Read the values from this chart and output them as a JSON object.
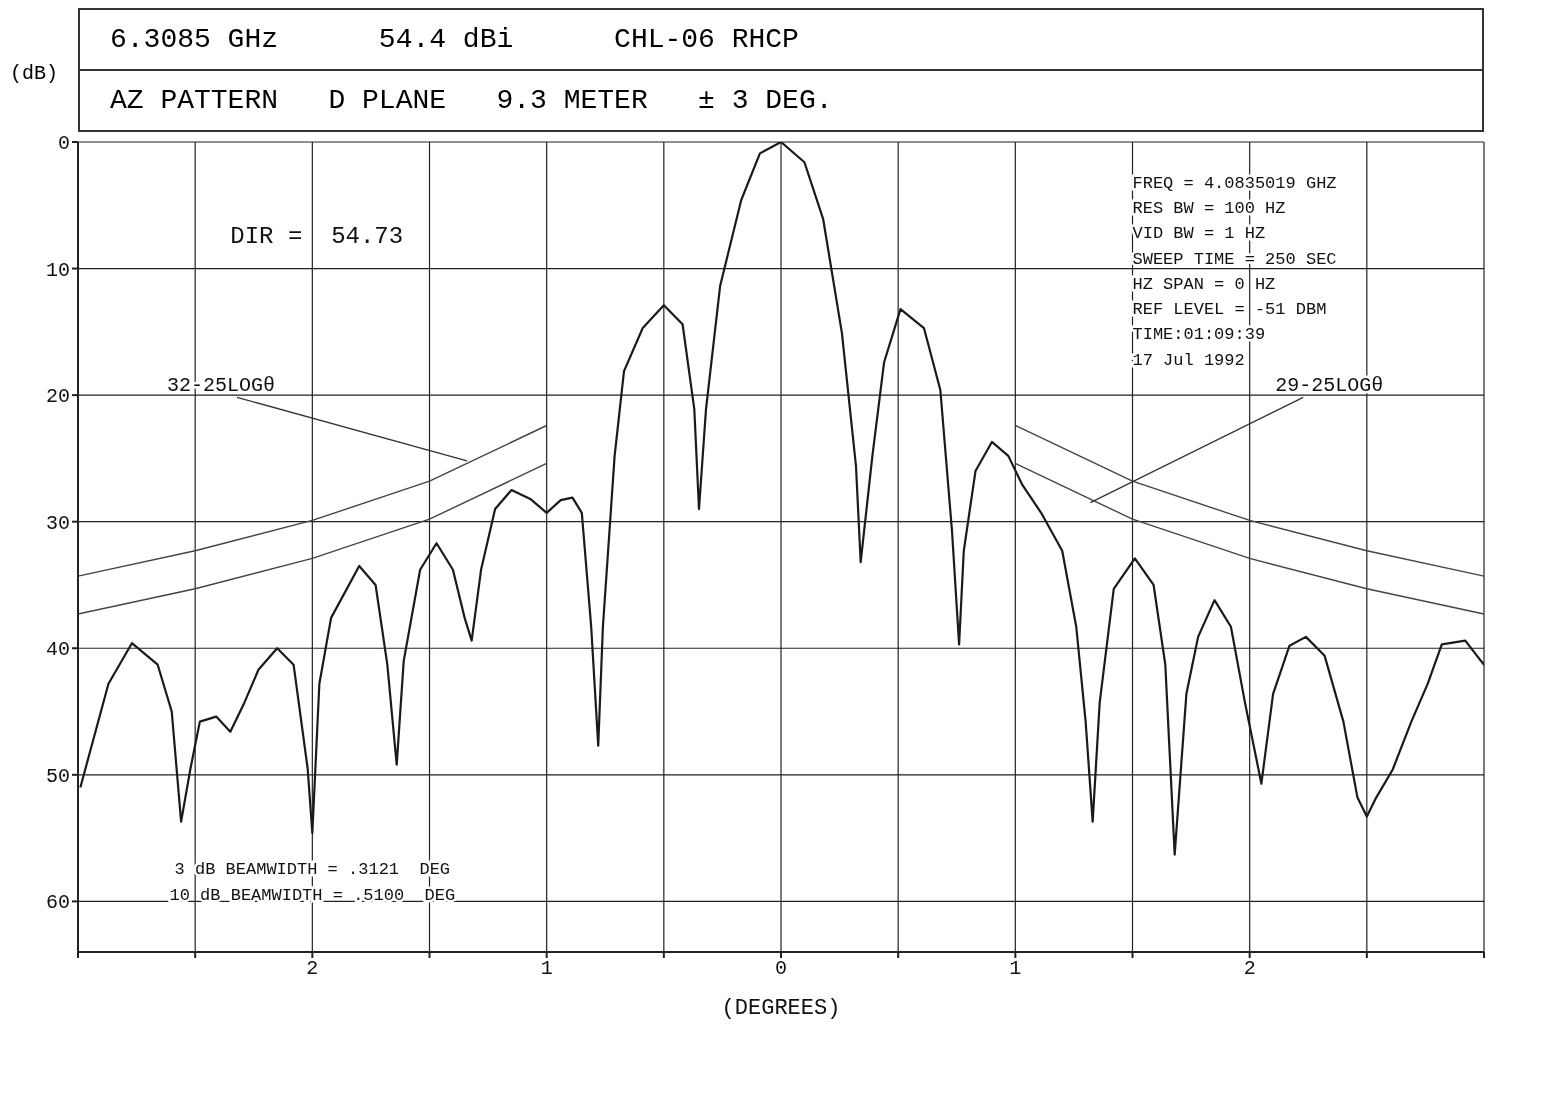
{
  "chart_data": {
    "type": "line",
    "title": "6.3085 GHz      54.4 dBi      CHL-06 RHCP",
    "subtitle": "AZ PATTERN   D PLANE   9.3 METER   ± 3 DEG.",
    "xlabel": "(DEGREES)",
    "ylabel": "(dB)",
    "xlim": [
      -3,
      3
    ],
    "xticks": [
      {
        "value": -3,
        "label": null
      },
      {
        "value": -2.5,
        "label": null
      },
      {
        "value": -2,
        "label": "2"
      },
      {
        "value": -1.5,
        "label": null
      },
      {
        "value": -1,
        "label": "1"
      },
      {
        "value": -0.5,
        "label": null
      },
      0,
      {
        "value": 0.5,
        "label": null
      },
      1,
      {
        "value": 1.5,
        "label": null
      },
      2,
      {
        "value": 2.5,
        "label": null
      },
      {
        "value": 3,
        "label": null
      }
    ],
    "ylim": [
      64,
      0
    ],
    "yticks": [
      0,
      10,
      20,
      30,
      40,
      50,
      60
    ],
    "grid": true,
    "series": [
      {
        "color": "#1a1a1a",
        "x": [
          -2.99,
          -2.87,
          -2.77,
          -2.66,
          -2.6,
          -2.56,
          -2.52,
          -2.48,
          -2.41,
          -2.35,
          -2.29,
          -2.23,
          -2.15,
          -2.08,
          -2.02,
          -2.0,
          -1.97,
          -1.92,
          -1.8,
          -1.73,
          -1.68,
          -1.64,
          -1.61,
          -1.54,
          -1.47,
          -1.4,
          -1.35,
          -1.32,
          -1.28,
          -1.22,
          -1.15,
          -1.07,
          -1.0,
          -0.94,
          -0.89,
          -0.85,
          -0.81,
          -0.78,
          -0.76,
          -0.71,
          -0.67,
          -0.59,
          -0.5,
          -0.42,
          -0.37,
          -0.35,
          -0.32,
          -0.26,
          -0.17,
          -0.09,
          0,
          0.1,
          0.18,
          0.26,
          0.32,
          0.34,
          0.39,
          0.44,
          0.51,
          0.61,
          0.68,
          0.73,
          0.76,
          0.78,
          0.83,
          0.9,
          0.97,
          1.03,
          1.11,
          1.2,
          1.26,
          1.3,
          1.33,
          1.36,
          1.42,
          1.51,
          1.59,
          1.64,
          1.68,
          1.73,
          1.78,
          1.85,
          1.92,
          1.98,
          2.05,
          2.1,
          2.17,
          2.24,
          2.32,
          2.4,
          2.46,
          2.5,
          2.54,
          2.61,
          2.69,
          2.76,
          2.82,
          2.92,
          3.0
        ],
        "values": [
          51,
          42.8,
          39.6,
          41.3,
          45,
          53.7,
          49.5,
          45.8,
          45.4,
          46.6,
          44.3,
          41.7,
          40,
          41.3,
          49.5,
          54.6,
          42.8,
          37.6,
          33.5,
          35,
          41.3,
          49.2,
          41,
          33.8,
          31.7,
          33.8,
          37.6,
          39.4,
          33.8,
          29,
          27.5,
          28.2,
          29.3,
          28.3,
          28.1,
          29.3,
          38.3,
          47.7,
          38.3,
          24.8,
          18.1,
          14.7,
          12.9,
          14.4,
          21.1,
          29,
          21.1,
          11.4,
          4.6,
          0.9,
          0,
          1.6,
          6.1,
          15.1,
          25.6,
          33.2,
          24.8,
          17.4,
          13.2,
          14.7,
          19.6,
          30.8,
          39.7,
          32.3,
          26,
          23.7,
          24.8,
          27.1,
          29.3,
          32.3,
          38.3,
          45.8,
          53.7,
          44.3,
          35.3,
          32.9,
          35,
          41.3,
          56.3,
          43.6,
          39.1,
          36.2,
          38.3,
          44.3,
          50.7,
          43.6,
          39.8,
          39.1,
          40.6,
          45.8,
          51.8,
          53.3,
          51.8,
          49.6,
          45.8,
          42.8,
          39.7,
          39.4,
          41.3
        ]
      },
      {
        "color": "#444444",
        "x": [
          -3,
          -2.5,
          -2,
          -1.5,
          -1
        ],
        "values": [
          34.3,
          32.3,
          29.9,
          26.8,
          22.4
        ]
      },
      {
        "color": "#444444",
        "x": [
          -3,
          -2.5,
          -2,
          -1.5,
          -1
        ],
        "values": [
          37.3,
          35.3,
          32.9,
          29.8,
          25.4
        ]
      },
      {
        "color": "#444444",
        "x": [
          1,
          1.5,
          2,
          2.5,
          3
        ],
        "values": [
          22.4,
          26.8,
          29.9,
          32.3,
          34.3
        ]
      },
      {
        "color": "#444444",
        "x": [
          1,
          1.5,
          2,
          2.5,
          3
        ],
        "values": [
          25.4,
          29.8,
          32.9,
          35.3,
          37.3
        ]
      }
    ],
    "annotations": [
      "DIR =  54.73",
      "FREQ = 4.0835019 GHZ",
      "RES BW = 100 HZ",
      "VID BW = 1 HZ",
      "SWEEP TIME = 250 SEC",
      "HZ SPAN = 0 HZ",
      "REF LEVEL = -51 DBM",
      "TIME:01:09:39",
      "17 Jul 1992",
      "3 dB BEAMWIDTH = .3121  DEG",
      "10 dB BEAMWIDTH = .5100  DEG",
      {
        "text": "32-25LOGθ",
        "x": -1.34,
        "y": 25.2
      },
      {
        "text": "29-25LOGθ",
        "x": 1.32,
        "y": 28.5
      }
    ]
  }
}
